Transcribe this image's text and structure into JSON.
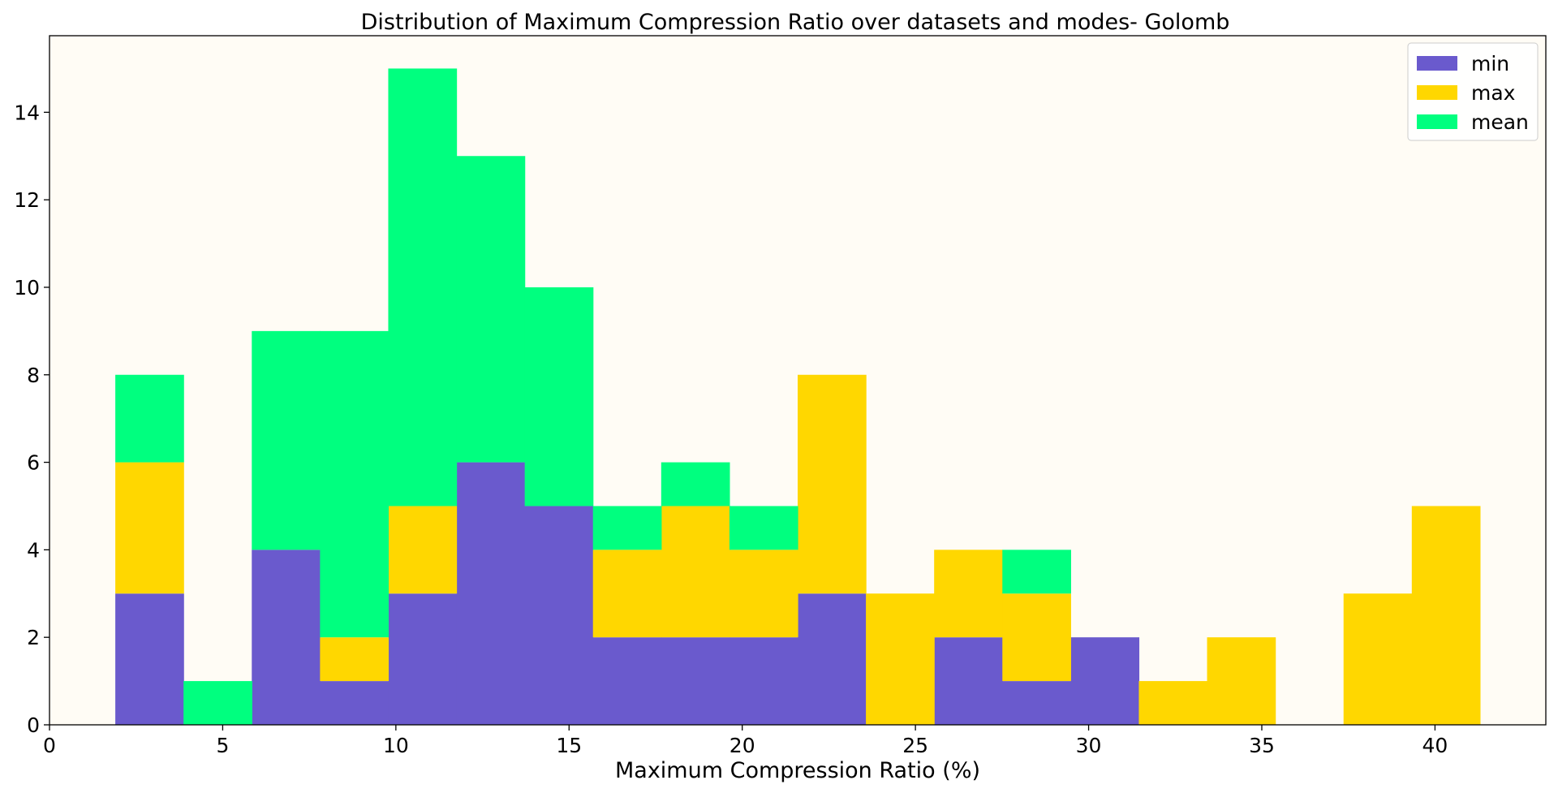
{
  "chart_data": {
    "type": "bar",
    "histtype": "stacked",
    "title": "Distribution of Maximum Compression Ratio over datasets and modes- Golomb",
    "xlabel": "Maximum Compression Ratio (%)",
    "ylabel": "",
    "xlim": [
      0,
      43.2
    ],
    "ylim": [
      0,
      15.75
    ],
    "xticks": [
      0,
      5,
      10,
      15,
      20,
      25,
      30,
      35,
      40
    ],
    "yticks": [
      0,
      2,
      4,
      6,
      8,
      10,
      12,
      14
    ],
    "bin_edges": [
      1.9,
      3.87,
      5.84,
      7.81,
      9.78,
      11.75,
      13.72,
      15.69,
      17.66,
      19.63,
      21.6,
      23.57,
      25.54,
      27.51,
      29.48,
      31.45,
      33.42,
      35.39,
      37.36,
      39.33,
      41.3
    ],
    "grid": false,
    "legend_position": "top-right",
    "plot_background": "#fffcf5",
    "series": [
      {
        "name": "min",
        "color": "#6a5acd",
        "values": [
          3,
          0,
          4,
          1,
          3,
          6,
          5,
          2,
          2,
          2,
          3,
          0,
          2,
          1,
          2,
          0,
          0,
          0,
          0,
          0
        ]
      },
      {
        "name": "max",
        "color": "#ffd700",
        "values": [
          3,
          0,
          0,
          1,
          2,
          0,
          0,
          2,
          3,
          2,
          5,
          3,
          2,
          2,
          0,
          1,
          2,
          0,
          3,
          5
        ]
      },
      {
        "name": "mean",
        "color": "#00ff7f",
        "values": [
          2,
          1,
          5,
          7,
          10,
          7,
          5,
          1,
          1,
          1,
          0,
          0,
          0,
          1,
          0,
          0,
          0,
          0,
          0,
          0
        ]
      }
    ]
  }
}
